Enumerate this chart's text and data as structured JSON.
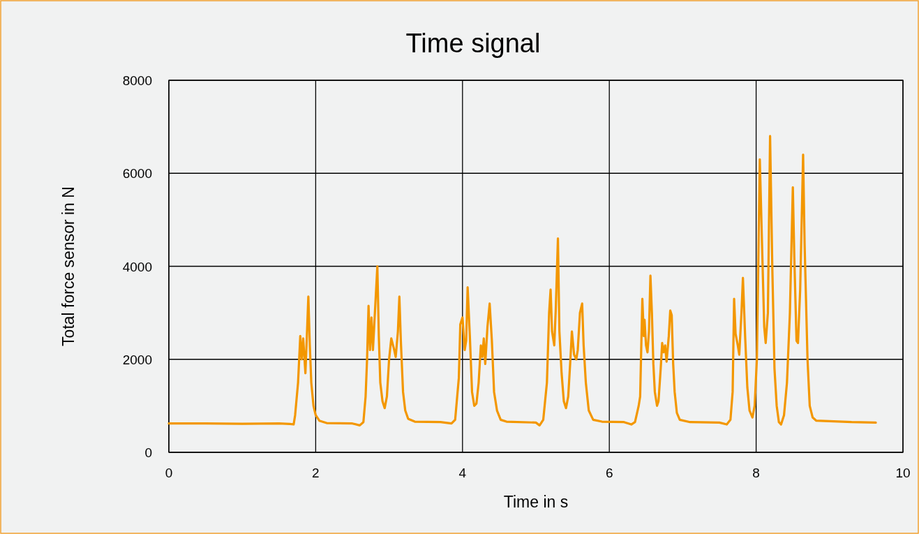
{
  "chart_data": {
    "type": "line",
    "title": "Time signal",
    "xlabel": "Time in s",
    "ylabel": "Total force sensor in N",
    "xlim": [
      0,
      10
    ],
    "xticks": [
      0,
      2,
      4,
      6,
      8,
      10
    ],
    "ylim": [
      0,
      8000
    ],
    "yticks": [
      0,
      2000,
      4000,
      6000,
      8000
    ],
    "grid": true,
    "marker": "none",
    "line_style": "solid",
    "series": [
      {
        "color": "#f39700",
        "x": [
          0,
          0.5,
          1.0,
          1.5,
          1.65,
          1.7,
          1.72,
          1.76,
          1.79,
          1.81,
          1.83,
          1.86,
          1.88,
          1.9,
          1.92,
          1.94,
          1.97,
          2.0,
          2.05,
          2.15,
          2.5,
          2.6,
          2.65,
          2.68,
          2.7,
          2.72,
          2.74,
          2.76,
          2.78,
          2.8,
          2.84,
          2.86,
          2.88,
          2.91,
          2.94,
          2.97,
          3.0,
          3.03,
          3.07,
          3.09,
          3.12,
          3.14,
          3.16,
          3.19,
          3.22,
          3.26,
          3.35,
          3.7,
          3.85,
          3.9,
          3.95,
          3.97,
          4.0,
          4.03,
          4.05,
          4.07,
          4.1,
          4.13,
          4.16,
          4.19,
          4.22,
          4.25,
          4.27,
          4.29,
          4.31,
          4.34,
          4.37,
          4.4,
          4.43,
          4.47,
          4.52,
          4.6,
          5.0,
          5.05,
          5.1,
          5.15,
          5.18,
          5.2,
          5.22,
          5.25,
          5.27,
          5.3,
          5.32,
          5.35,
          5.38,
          5.41,
          5.44,
          5.47,
          5.49,
          5.52,
          5.55,
          5.57,
          5.6,
          5.63,
          5.65,
          5.68,
          5.72,
          5.78,
          5.9,
          6.2,
          6.3,
          6.35,
          6.4,
          6.42,
          6.45,
          6.47,
          6.48,
          6.5,
          6.52,
          6.54,
          6.56,
          6.58,
          6.6,
          6.62,
          6.65,
          6.67,
          6.7,
          6.72,
          6.74,
          6.76,
          6.78,
          6.81,
          6.83,
          6.85,
          6.87,
          6.89,
          6.92,
          6.96,
          7.1,
          7.5,
          7.6,
          7.65,
          7.68,
          7.7,
          7.72,
          7.75,
          7.77,
          7.8,
          7.82,
          7.85,
          7.88,
          7.91,
          7.95,
          7.98,
          8.01,
          8.05,
          8.08,
          8.11,
          8.13,
          8.16,
          8.19,
          8.22,
          8.25,
          8.28,
          8.31,
          8.34,
          8.38,
          8.42,
          8.46,
          8.5,
          8.52,
          8.55,
          8.57,
          8.6,
          8.64,
          8.66,
          8.7,
          8.73,
          8.77,
          8.82,
          9.0,
          9.3,
          9.63
        ],
        "values": [
          620,
          620,
          615,
          620,
          610,
          600,
          800,
          1500,
          2500,
          2000,
          2450,
          1700,
          2500,
          3350,
          2300,
          1500,
          1000,
          800,
          680,
          630,
          620,
          580,
          650,
          1200,
          2000,
          3150,
          2200,
          2900,
          2200,
          2800,
          4000,
          2500,
          1500,
          1100,
          950,
          1200,
          2000,
          2450,
          2200,
          2050,
          2600,
          3350,
          2400,
          1300,
          900,
          720,
          660,
          650,
          620,
          700,
          1600,
          2750,
          2900,
          2200,
          2400,
          3550,
          2500,
          1300,
          1000,
          1050,
          1500,
          2300,
          2050,
          2450,
          1900,
          2700,
          3200,
          2400,
          1300,
          900,
          700,
          660,
          640,
          580,
          700,
          1500,
          3000,
          3500,
          2600,
          2300,
          3050,
          4600,
          2600,
          1700,
          1100,
          950,
          1200,
          2000,
          2600,
          2100,
          2000,
          2200,
          3000,
          3200,
          2300,
          1500,
          900,
          700,
          660,
          650,
          600,
          650,
          1000,
          1200,
          3300,
          2500,
          2850,
          2300,
          2150,
          2600,
          3800,
          3000,
          1900,
          1300,
          1000,
          1100,
          1800,
          2350,
          2150,
          2300,
          1950,
          2500,
          3050,
          2950,
          1900,
          1300,
          850,
          700,
          650,
          640,
          600,
          700,
          1300,
          3300,
          2550,
          2300,
          2100,
          3000,
          3750,
          2500,
          1400,
          900,
          750,
          1000,
          2000,
          6300,
          4500,
          2700,
          2350,
          3000,
          6800,
          4000,
          1800,
          1000,
          650,
          600,
          800,
          1500,
          3000,
          5700,
          4200,
          2400,
          2350,
          3500,
          6400,
          4500,
          2000,
          1000,
          750,
          680,
          670,
          650,
          640
        ]
      }
    ]
  }
}
